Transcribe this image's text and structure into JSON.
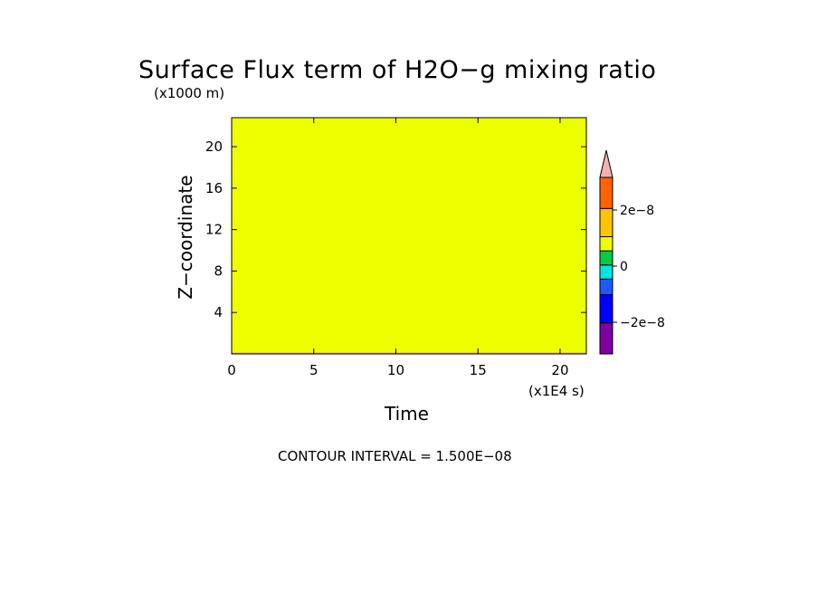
{
  "chart_data": {
    "type": "heatmap",
    "title": "Surface Flux term of H2O−g mixing ratio",
    "xlabel": "Time",
    "ylabel": "Z−coordinate",
    "x_unit": "(x1E4 s)",
    "y_unit": "(x1000 m)",
    "xlim": [
      0,
      21.6
    ],
    "ylim": [
      0,
      22.8
    ],
    "x_ticks": [
      0,
      5,
      10,
      15,
      20
    ],
    "y_ticks": [
      4,
      8,
      12,
      16,
      20
    ],
    "field_value": 0,
    "contour_interval_text": "CONTOUR INTERVAL = 1.500E−08",
    "colorbar": {
      "levels": [
        {
          "color": "#7f00a0"
        },
        {
          "color": "#0000ff"
        },
        {
          "color": "#1e5aff"
        },
        {
          "color": "#00e5e5"
        },
        {
          "color": "#00cc44"
        },
        {
          "color": "#eeff00"
        },
        {
          "color": "#ffc400"
        },
        {
          "color": "#ff6400"
        },
        {
          "color": "#ee1111"
        },
        {
          "color": "#f4b0b0"
        }
      ],
      "labels": [
        "2e−8",
        "0",
        "−2e−8"
      ],
      "label_values": [
        2e-08,
        0,
        -2e-08
      ]
    },
    "field_color": "#eeff00"
  }
}
